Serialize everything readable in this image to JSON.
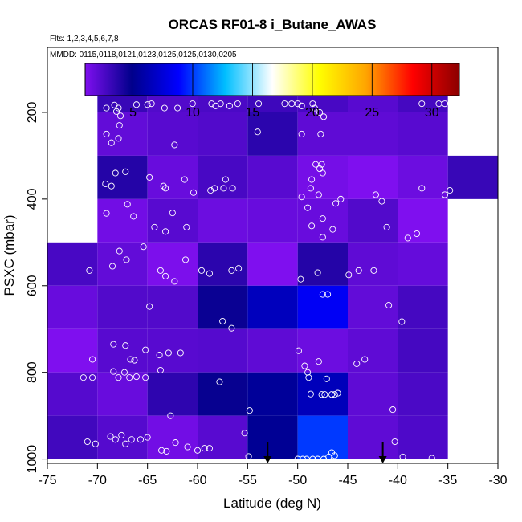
{
  "chart_data": {
    "type": "heatmap",
    "title": "ORCAS RF01-8 i_Butane_AWAS",
    "flights_note": "Flts: 1,2,3,4,5,6,7,8",
    "dates_note": "MMDD: 0115,0118,0121,0123,0125,0125,0130,0205",
    "xlabel": "Latitude (deg N)",
    "ylabel": "PSXC (mbar)",
    "xlim": [
      -75,
      -30
    ],
    "ylim": [
      1010,
      50
    ],
    "x_ticks": [
      -75,
      -70,
      -65,
      -60,
      -55,
      -50,
      -45,
      -40,
      -35,
      -30
    ],
    "y_ticks": [
      200,
      400,
      600,
      800,
      1000
    ],
    "colorbar": {
      "range": [
        1,
        32.3
      ],
      "ticks": [
        5,
        10,
        15,
        20,
        25,
        30
      ],
      "stops": [
        "#7f0fef",
        "#00008b",
        "#0000ff",
        "#00bfff",
        "#ffffff",
        "#ffff00",
        "#ffa500",
        "#ff0000",
        "#8b0000"
      ]
    },
    "cells": [
      {
        "lat": -70,
        "p": 150,
        "value": 3.2
      },
      {
        "lat": -65,
        "p": 150,
        "value": 2.4
      },
      {
        "lat": -60,
        "p": 150,
        "value": 2.6
      },
      {
        "lat": -55,
        "p": 150,
        "value": 3.0
      },
      {
        "lat": -50,
        "p": 150,
        "value": 2.7
      },
      {
        "lat": -45,
        "p": 150,
        "value": 2.2
      },
      {
        "lat": -40,
        "p": 150,
        "value": 2.8
      },
      {
        "lat": -70,
        "p": 250,
        "value": 1.9
      },
      {
        "lat": -65,
        "p": 250,
        "value": 2.2
      },
      {
        "lat": -60,
        "p": 250,
        "value": 2.4
      },
      {
        "lat": -55,
        "p": 250,
        "value": 3.6
      },
      {
        "lat": -50,
        "p": 250,
        "value": 2.0
      },
      {
        "lat": -45,
        "p": 250,
        "value": 2.0
      },
      {
        "lat": -40,
        "p": 250,
        "value": 2.2
      },
      {
        "lat": -70,
        "p": 350,
        "value": 3.8
      },
      {
        "lat": -65,
        "p": 350,
        "value": 1.7
      },
      {
        "lat": -60,
        "p": 350,
        "value": 2.7
      },
      {
        "lat": -55,
        "p": 350,
        "value": 2.2
      },
      {
        "lat": -50,
        "p": 350,
        "value": 1.3
      },
      {
        "lat": -45,
        "p": 350,
        "value": 0.6
      },
      {
        "lat": -40,
        "p": 350,
        "value": 1.6
      },
      {
        "lat": -35,
        "p": 350,
        "value": 3.2
      },
      {
        "lat": -70,
        "p": 450,
        "value": 1.4
      },
      {
        "lat": -65,
        "p": 450,
        "value": 2.2
      },
      {
        "lat": -60,
        "p": 450,
        "value": 1.6
      },
      {
        "lat": -55,
        "p": 450,
        "value": 1.7
      },
      {
        "lat": -50,
        "p": 450,
        "value": 1.7
      },
      {
        "lat": -45,
        "p": 450,
        "value": 2.4
      },
      {
        "lat": -40,
        "p": 450,
        "value": 0.9
      },
      {
        "lat": -75,
        "p": 550,
        "value": 2.7
      },
      {
        "lat": -70,
        "p": 550,
        "value": 1.9
      },
      {
        "lat": -65,
        "p": 550,
        "value": 1.1
      },
      {
        "lat": -60,
        "p": 550,
        "value": 3.6
      },
      {
        "lat": -55,
        "p": 550,
        "value": 0.9
      },
      {
        "lat": -50,
        "p": 550,
        "value": 3.8
      },
      {
        "lat": -45,
        "p": 550,
        "value": 2.0
      },
      {
        "lat": -40,
        "p": 550,
        "value": 1.8
      },
      {
        "lat": -75,
        "p": 650,
        "value": 1.7
      },
      {
        "lat": -70,
        "p": 650,
        "value": 2.4
      },
      {
        "lat": -65,
        "p": 650,
        "value": 2.4
      },
      {
        "lat": -60,
        "p": 650,
        "value": 4.6
      },
      {
        "lat": -55,
        "p": 650,
        "value": 6.6
      },
      {
        "lat": -50,
        "p": 650,
        "value": 8.5
      },
      {
        "lat": -45,
        "p": 650,
        "value": 1.9
      },
      {
        "lat": -40,
        "p": 650,
        "value": 2.8
      },
      {
        "lat": -75,
        "p": 750,
        "value": 0.9
      },
      {
        "lat": -70,
        "p": 750,
        "value": 2.2
      },
      {
        "lat": -65,
        "p": 750,
        "value": 2.2
      },
      {
        "lat": -60,
        "p": 750,
        "value": 2.3
      },
      {
        "lat": -55,
        "p": 750,
        "value": 2.0
      },
      {
        "lat": -50,
        "p": 750,
        "value": 1.6
      },
      {
        "lat": -45,
        "p": 750,
        "value": 2.0
      },
      {
        "lat": -40,
        "p": 750,
        "value": 2.8
      },
      {
        "lat": -75,
        "p": 850,
        "value": 2.3
      },
      {
        "lat": -70,
        "p": 850,
        "value": 1.7
      },
      {
        "lat": -65,
        "p": 850,
        "value": 3.5
      },
      {
        "lat": -60,
        "p": 850,
        "value": 4.7
      },
      {
        "lat": -55,
        "p": 850,
        "value": 5.4
      },
      {
        "lat": -50,
        "p": 850,
        "value": 6.5
      },
      {
        "lat": -45,
        "p": 850,
        "value": 2.0
      },
      {
        "lat": -40,
        "p": 850,
        "value": 2.6
      },
      {
        "lat": -75,
        "p": 950,
        "value": 2.9
      },
      {
        "lat": -70,
        "p": 950,
        "value": 2.3
      },
      {
        "lat": -65,
        "p": 950,
        "value": 1.4
      },
      {
        "lat": -60,
        "p": 950,
        "value": 2.2
      },
      {
        "lat": -55,
        "p": 950,
        "value": 5.2
      },
      {
        "lat": -50,
        "p": 950,
        "value": 10.0
      },
      {
        "lat": -45,
        "p": 950,
        "value": 2.0
      },
      {
        "lat": -40,
        "p": 950,
        "value": 2.5
      }
    ],
    "samples": [
      [
        -69.1,
        190
      ],
      [
        -68.3,
        183
      ],
      [
        -67.9,
        190
      ],
      [
        -68.1,
        198
      ],
      [
        -67.7,
        208
      ],
      [
        -66.1,
        182
      ],
      [
        -65.0,
        182
      ],
      [
        -64.6,
        180
      ],
      [
        -63.3,
        190
      ],
      [
        -62.0,
        190
      ],
      [
        -60.5,
        180
      ],
      [
        -58.6,
        180
      ],
      [
        -58.2,
        185
      ],
      [
        -57.7,
        180
      ],
      [
        -56.8,
        185
      ],
      [
        -56.0,
        180
      ],
      [
        -53.9,
        180
      ],
      [
        -51.3,
        180
      ],
      [
        -50.6,
        180
      ],
      [
        -50.0,
        180
      ],
      [
        -49.6,
        185
      ],
      [
        -48.5,
        180
      ],
      [
        -48.3,
        190
      ],
      [
        -47.8,
        200
      ],
      [
        -47.4,
        210
      ],
      [
        -37.6,
        180
      ],
      [
        -35.9,
        180
      ],
      [
        -35.3,
        180
      ],
      [
        -69.1,
        250
      ],
      [
        -67.8,
        230
      ],
      [
        -68.6,
        270
      ],
      [
        -67.9,
        260
      ],
      [
        -62.3,
        275
      ],
      [
        -54.0,
        245
      ],
      [
        -49.6,
        250
      ],
      [
        -47.7,
        250
      ],
      [
        -69.2,
        365
      ],
      [
        -68.2,
        340
      ],
      [
        -67.2,
        337
      ],
      [
        -68.6,
        370
      ],
      [
        -64.8,
        350
      ],
      [
        -63.4,
        370
      ],
      [
        -63.2,
        375
      ],
      [
        -61.3,
        355
      ],
      [
        -60.4,
        385
      ],
      [
        -58.7,
        380
      ],
      [
        -58.3,
        375
      ],
      [
        -57.4,
        375
      ],
      [
        -56.5,
        375
      ],
      [
        -57.2,
        355
      ],
      [
        -48.2,
        320
      ],
      [
        -47.8,
        330
      ],
      [
        -47.6,
        320
      ],
      [
        -47.5,
        340
      ],
      [
        -48.6,
        355
      ],
      [
        -48.7,
        375
      ],
      [
        -47.9,
        390
      ],
      [
        -49.6,
        395
      ],
      [
        -46.2,
        410
      ],
      [
        -45.7,
        400
      ],
      [
        -42.2,
        390
      ],
      [
        -41.6,
        405
      ],
      [
        -37.6,
        375
      ],
      [
        -35.3,
        390
      ],
      [
        -34.8,
        380
      ],
      [
        -67.0,
        412
      ],
      [
        -69.1,
        433
      ],
      [
        -66.4,
        440
      ],
      [
        -64.3,
        465
      ],
      [
        -63.2,
        475
      ],
      [
        -62.5,
        432
      ],
      [
        -61.1,
        465
      ],
      [
        -49.0,
        420
      ],
      [
        -47.5,
        445
      ],
      [
        -48.6,
        462
      ],
      [
        -46.5,
        470
      ],
      [
        -47.5,
        488
      ],
      [
        -41.1,
        465
      ],
      [
        -39.0,
        490
      ],
      [
        -38.1,
        480
      ],
      [
        -67.8,
        520
      ],
      [
        -67.1,
        540
      ],
      [
        -68.5,
        555
      ],
      [
        -70.8,
        565
      ],
      [
        -65.4,
        510
      ],
      [
        -63.7,
        565
      ],
      [
        -63.2,
        578
      ],
      [
        -62.3,
        590
      ],
      [
        -61.2,
        540
      ],
      [
        -59.6,
        565
      ],
      [
        -58.8,
        572
      ],
      [
        -56.6,
        565
      ],
      [
        -55.9,
        560
      ],
      [
        -49.7,
        585
      ],
      [
        -48.0,
        570
      ],
      [
        -47.5,
        620
      ],
      [
        -47.0,
        620
      ],
      [
        -44.9,
        575
      ],
      [
        -43.9,
        565
      ],
      [
        -42.4,
        565
      ],
      [
        -64.8,
        648
      ],
      [
        -57.5,
        682
      ],
      [
        -56.6,
        698
      ],
      [
        -40.9,
        645
      ],
      [
        -39.6,
        683
      ],
      [
        -68.4,
        735
      ],
      [
        -70.5,
        770
      ],
      [
        -67.2,
        738
      ],
      [
        -66.7,
        770
      ],
      [
        -66.3,
        772
      ],
      [
        -67.3,
        800
      ],
      [
        -67.9,
        812
      ],
      [
        -68.4,
        798
      ],
      [
        -66.8,
        812
      ],
      [
        -66.1,
        810
      ],
      [
        -65.2,
        812
      ],
      [
        -65.2,
        748
      ],
      [
        -63.7,
        795
      ],
      [
        -63.8,
        760
      ],
      [
        -62.9,
        755
      ],
      [
        -61.7,
        755
      ],
      [
        -71.4,
        812
      ],
      [
        -70.5,
        812
      ],
      [
        -57.8,
        822
      ],
      [
        -49.9,
        750
      ],
      [
        -49.3,
        785
      ],
      [
        -48.9,
        812
      ],
      [
        -49.0,
        800
      ],
      [
        -47.9,
        775
      ],
      [
        -47.1,
        815
      ],
      [
        -44.1,
        780
      ],
      [
        -43.3,
        770
      ],
      [
        -62.7,
        900
      ],
      [
        -54.8,
        888
      ],
      [
        -48.7,
        850
      ],
      [
        -47.6,
        851
      ],
      [
        -47.3,
        851
      ],
      [
        -46.6,
        851
      ],
      [
        -46.3,
        851
      ],
      [
        -46.0,
        848
      ],
      [
        -40.5,
        886
      ],
      [
        -71.0,
        960
      ],
      [
        -70.2,
        965
      ],
      [
        -68.7,
        948
      ],
      [
        -68.2,
        955
      ],
      [
        -67.6,
        945
      ],
      [
        -67.2,
        965
      ],
      [
        -66.6,
        955
      ],
      [
        -65.7,
        955
      ],
      [
        -65.0,
        950
      ],
      [
        -63.6,
        980
      ],
      [
        -63.1,
        982
      ],
      [
        -62.2,
        962
      ],
      [
        -61.0,
        972
      ],
      [
        -60.0,
        980
      ],
      [
        -59.3,
        975
      ],
      [
        -58.8,
        975
      ],
      [
        -55.3,
        940
      ],
      [
        -54.9,
        994
      ],
      [
        -50.0,
        1000
      ],
      [
        -49.5,
        1000
      ],
      [
        -49.1,
        1000
      ],
      [
        -48.5,
        1000
      ],
      [
        -48.0,
        1000
      ],
      [
        -47.4,
        1000
      ],
      [
        -46.9,
        995
      ],
      [
        -46.6,
        985
      ],
      [
        -46.3,
        992
      ],
      [
        -40.3,
        960
      ],
      [
        -39.5,
        995
      ],
      [
        -36.6,
        998
      ]
    ],
    "arrows": [
      {
        "lat": -53.0,
        "p_from": 960,
        "p_to": 1010
      },
      {
        "lat": -41.5,
        "p_from": 960,
        "p_to": 1010
      }
    ]
  }
}
